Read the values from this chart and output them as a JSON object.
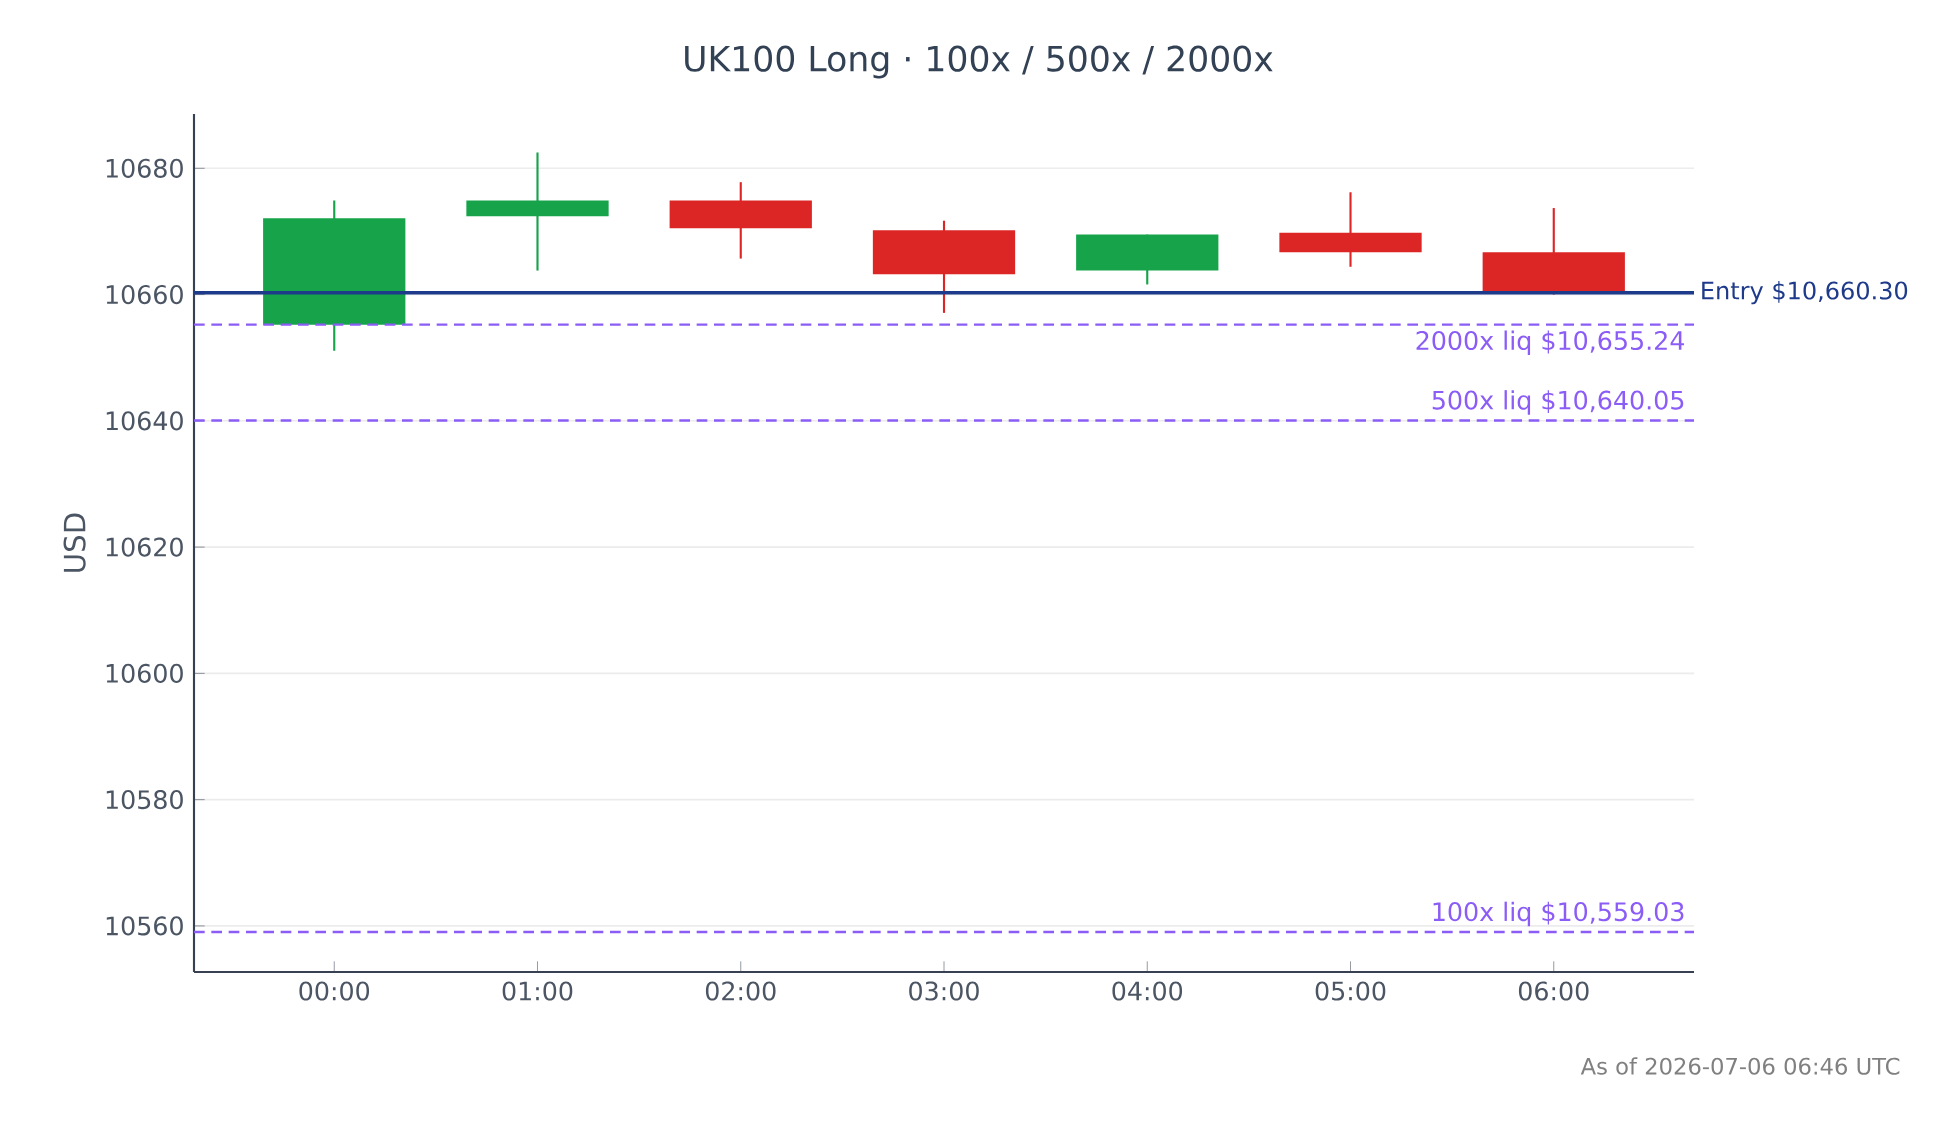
{
  "chart_data": {
    "type": "candlestick",
    "title": "UK100 Long · 100x / 500x / 2000x",
    "ylabel": "USD",
    "categories": [
      "00:00",
      "01:00",
      "02:00",
      "03:00",
      "04:00",
      "05:00",
      "06:00"
    ],
    "ohlc": [
      [
        10655.2,
        10674.9,
        10651.1,
        10672.1
      ],
      [
        10672.4,
        10682.5,
        10663.8,
        10674.9
      ],
      [
        10674.9,
        10677.8,
        10665.7,
        10670.5
      ],
      [
        10670.2,
        10671.7,
        10657.1,
        10663.2
      ],
      [
        10663.8,
        10669.5,
        10661.6,
        10669.5
      ],
      [
        10669.8,
        10676.2,
        10664.4,
        10666.7
      ],
      [
        10666.7,
        10673.7,
        10660.0,
        10660.3
      ]
    ],
    "ylim": [
      10552.7,
      10688.6
    ],
    "yticks": [
      10560,
      10580,
      10600,
      10620,
      10640,
      10660,
      10680
    ],
    "grid": "y",
    "ref_lines": [
      {
        "axis": "y",
        "value": 10660.3,
        "label": "Entry $10,660.30",
        "color": "#1e3a8a",
        "line_style": "solid"
      },
      {
        "axis": "y",
        "value": 10655.24,
        "label": "2000x liq $10,655.24",
        "color": "#8b5cf6",
        "line_style": "dashed"
      },
      {
        "axis": "y",
        "value": 10640.05,
        "label": "500x liq $10,640.05",
        "color": "#8b5cf6",
        "line_style": "dashed"
      },
      {
        "axis": "y",
        "value": 10559.03,
        "label": "100x liq $10,559.03",
        "color": "#8b5cf6",
        "line_style": "dashed"
      }
    ],
    "annotations": [
      "As of 2026-07-06 06:46 UTC"
    ]
  }
}
